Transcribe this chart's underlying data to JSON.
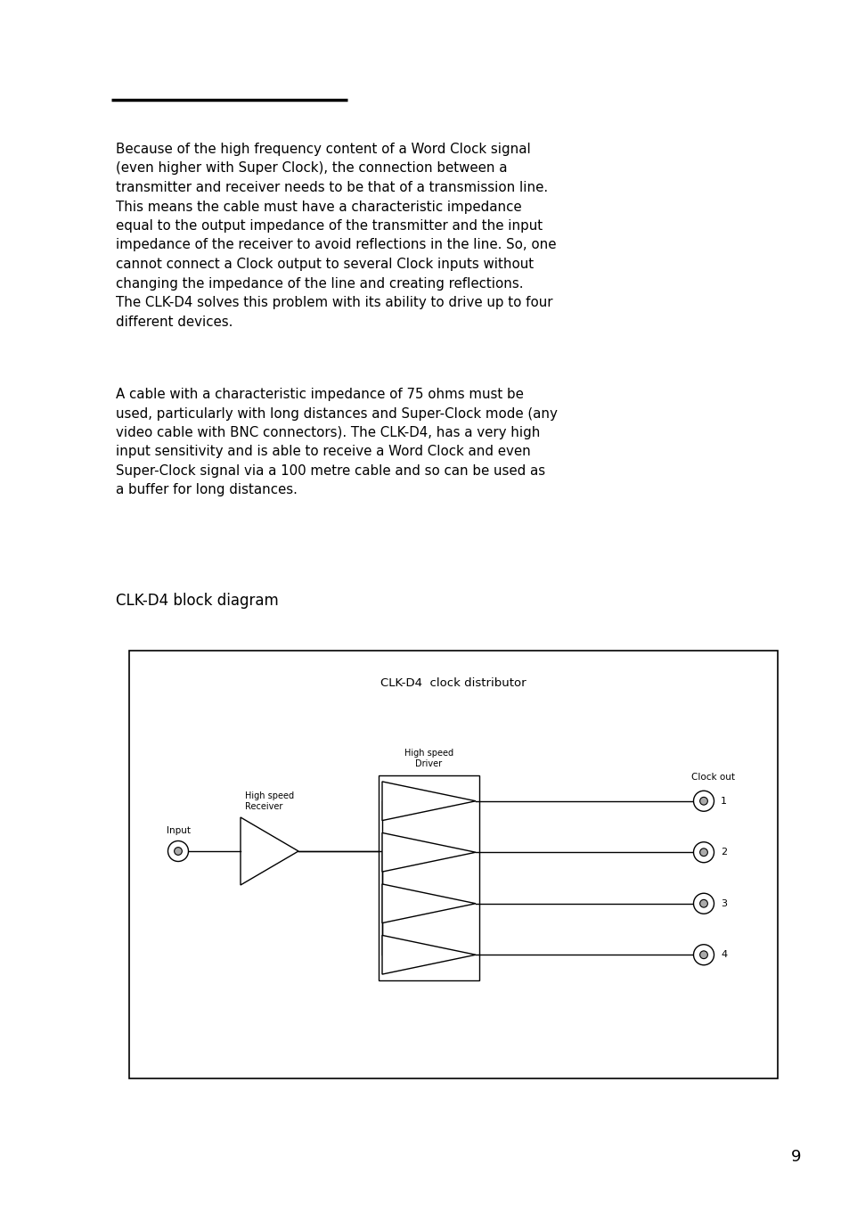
{
  "bg_color": "#ffffff",
  "line_color": "#000000",
  "page_number": "9",
  "paragraph1_lines": [
    "Because of the high frequency content of a Word Clock signal",
    "(even higher with Super Clock), the connection between a",
    "transmitter and receiver needs to be that of a transmission line.",
    "This means the cable must have a characteristic impedance",
    "equal to the output impedance of the transmitter and the input",
    "impedance of the receiver to avoid reflections in the line. So, one",
    "cannot connect a Clock output to several Clock inputs without",
    "changing the impedance of the line and creating reflections.",
    "The CLK-D4 solves this problem with its ability to drive up to four",
    "different devices."
  ],
  "paragraph2_lines": [
    "A cable with a characteristic impedance of 75 ohms must be",
    "used, particularly with long distances and Super-Clock mode (any",
    "video cable with BNC connectors). The CLK-D4, has a very high",
    "input sensitivity and is able to receive a Word Clock and even",
    "Super-Clock signal via a 100 metre cable and so can be used as",
    "a buffer for long distances."
  ],
  "diagram_label": "CLK-D4 block diagram",
  "diagram_title": "CLK-D4  clock distributor",
  "label_input": "Input",
  "label_high_speed_receiver": "High speed\nReceiver",
  "label_high_speed_driver": "High speed\nDriver",
  "label_clock_out": "Clock out",
  "output_labels": [
    "1",
    "2",
    "3",
    "4"
  ]
}
